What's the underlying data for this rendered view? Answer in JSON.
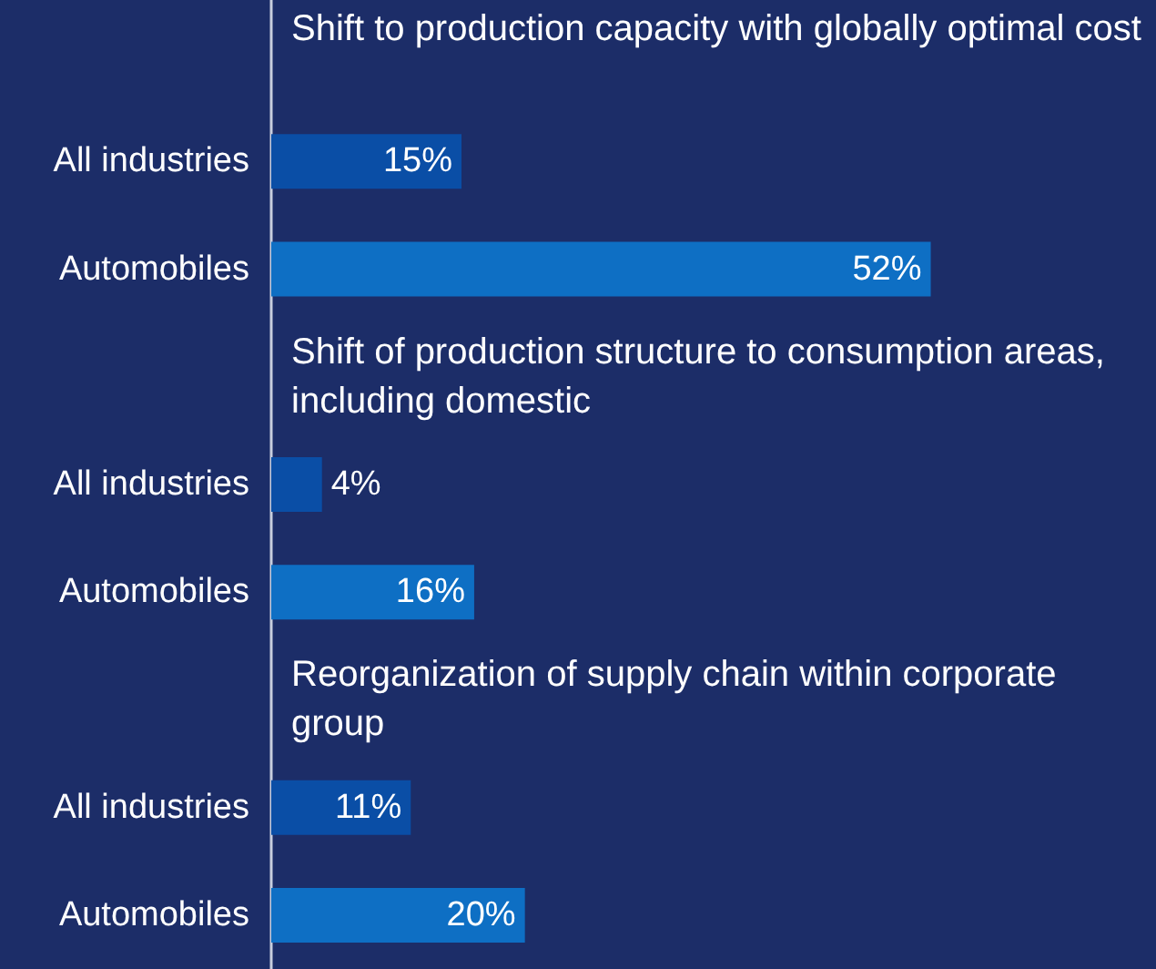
{
  "chart_data": {
    "type": "bar",
    "orientation": "horizontal",
    "categories": [
      "All industries",
      "Automobiles",
      "All industries",
      "Automobiles",
      "All industries",
      "Automobiles"
    ],
    "values": [
      15,
      52,
      4,
      16,
      11,
      20
    ],
    "colors": [
      "#0a4ea6",
      "#0e6fc4",
      "#0a4ea6",
      "#0e6fc4",
      "#0a4ea6",
      "#0e6fc4"
    ],
    "value_labels": [
      "15%",
      "52%",
      "4%",
      "16%",
      "11%",
      "20%"
    ],
    "annotations": [
      "Shift to production capacity with globally optimal cost",
      "Shift of production structure to consumption areas, including domestic",
      "Reorganization of supply chain within corporate group"
    ]
  }
}
